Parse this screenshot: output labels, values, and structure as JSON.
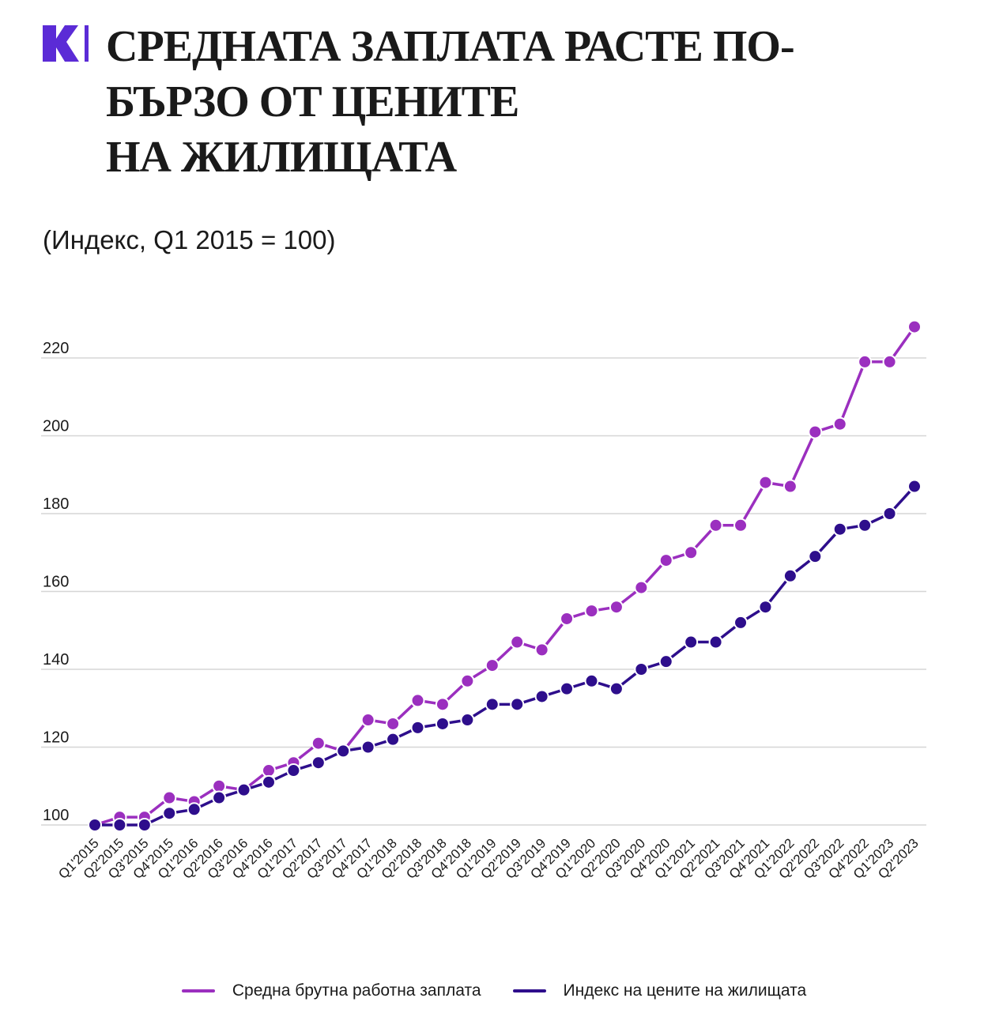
{
  "title_lines": [
    "СРЕДНАТА ЗАПЛАТА РАСТЕ ПО-",
    "БЪРЗО ОТ ЦЕНИТЕ",
    "НА ЖИЛИЩАТА"
  ],
  "subtitle": "(Индекс, Q1 2015 = 100)",
  "colors": {
    "logo": "#5b2bd6",
    "wage": "#9b2fbf",
    "housing": "#2e0e8c",
    "grid": "#d6d6d6"
  },
  "chart_data": {
    "type": "line",
    "title": "",
    "xlabel": "",
    "ylabel": "",
    "ylim": [
      96,
      230
    ],
    "yticks": [
      100,
      120,
      140,
      160,
      180,
      200,
      220
    ],
    "grid": "horizontal",
    "legend_position": "bottom",
    "categories": [
      "Q1'2015",
      "Q2'2015",
      "Q3'2015",
      "Q4'2015",
      "Q1'2016",
      "Q2'2016",
      "Q3'2016",
      "Q4'2016",
      "Q1'2017",
      "Q2'2017",
      "Q3'2017",
      "Q4'2017",
      "Q1'2018",
      "Q2'2018",
      "Q3'2018",
      "Q4'2018",
      "Q1'2019",
      "Q2'2019",
      "Q3'2019",
      "Q4'2019",
      "Q1'2020",
      "Q2'2020",
      "Q3'2020",
      "Q4'2020",
      "Q1'2021",
      "Q2'2021",
      "Q3'2021",
      "Q4'2021",
      "Q1'2022",
      "Q2'2022",
      "Q3'2022",
      "Q4'2022",
      "Q1'2023",
      "Q2'2023"
    ],
    "series": [
      {
        "name": "Средна брутна работна заплата",
        "color": "#9b2fbf",
        "values": [
          100,
          102,
          102,
          107,
          106,
          110,
          109,
          114,
          116,
          121,
          119,
          127,
          126,
          132,
          131,
          137,
          141,
          147,
          145,
          153,
          155,
          156,
          161,
          168,
          170,
          177,
          177,
          188,
          187,
          201,
          203,
          219,
          219,
          228
        ]
      },
      {
        "name": "Индекс на цените на жилищата",
        "color": "#2e0e8c",
        "values": [
          100,
          100,
          100,
          103,
          104,
          107,
          109,
          111,
          114,
          116,
          119,
          120,
          122,
          125,
          126,
          127,
          131,
          131,
          133,
          135,
          137,
          135,
          140,
          142,
          147,
          147,
          152,
          156,
          164,
          169,
          176,
          177,
          180,
          187
        ]
      }
    ]
  }
}
